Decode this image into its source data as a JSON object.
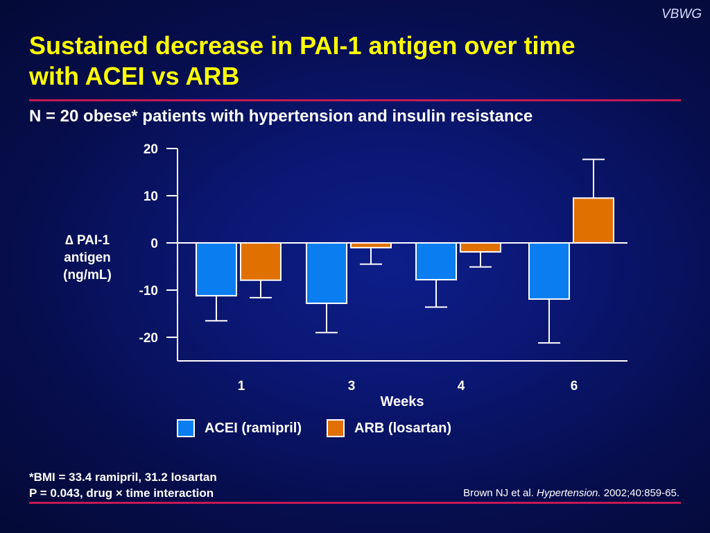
{
  "brand": "VBWG",
  "title": {
    "line1": "Sustained decrease in PAI-1 antigen over time",
    "line2": "with ACEI vs ARB"
  },
  "subtitle": "N = 20 obese* patients with hypertension and insulin resistance",
  "yaxis_label": {
    "line1": "∆ PAI-1",
    "line2": "antigen",
    "line3": "(ng/mL)"
  },
  "legend": {
    "acei": "ACEI (ramipril)",
    "arb": "ARB (losartan)"
  },
  "footnotes": {
    "line1": "*BMI = 33.4 ramipril, 31.2 losartan",
    "line2": "P = 0.043, drug × time interaction"
  },
  "citation": {
    "authors": "Brown NJ et al.",
    "journal": "Hypertension.",
    "details": "2002;40:859-65."
  },
  "colors": {
    "acei": "#0a7df0",
    "arb": "#e07000",
    "title": "#ffff00",
    "rule": "#c41a55"
  },
  "chart_data": {
    "type": "bar",
    "xlabel": "Weeks",
    "ylabel": "∆ PAI-1 antigen (ng/mL)",
    "categories": [
      "1",
      "3",
      "4",
      "6"
    ],
    "ylim": [
      -25,
      20
    ],
    "yticks": [
      20,
      10,
      0,
      -10,
      -20
    ],
    "grid": false,
    "legend_position": "bottom",
    "series": [
      {
        "name": "ACEI (ramipril)",
        "color": "#0a7df0",
        "values": [
          -11.2,
          -12.8,
          -7.8,
          -11.9
        ],
        "error_low": [
          -16.5,
          -19.0,
          -13.6,
          -21.2
        ]
      },
      {
        "name": "ARB (losartan)",
        "color": "#e07000",
        "values": [
          -7.9,
          -1.0,
          -1.9,
          9.5
        ],
        "error_low": [
          -11.6,
          -4.5,
          -5.1,
          null
        ],
        "error_high": [
          null,
          null,
          null,
          17.7
        ]
      }
    ]
  }
}
